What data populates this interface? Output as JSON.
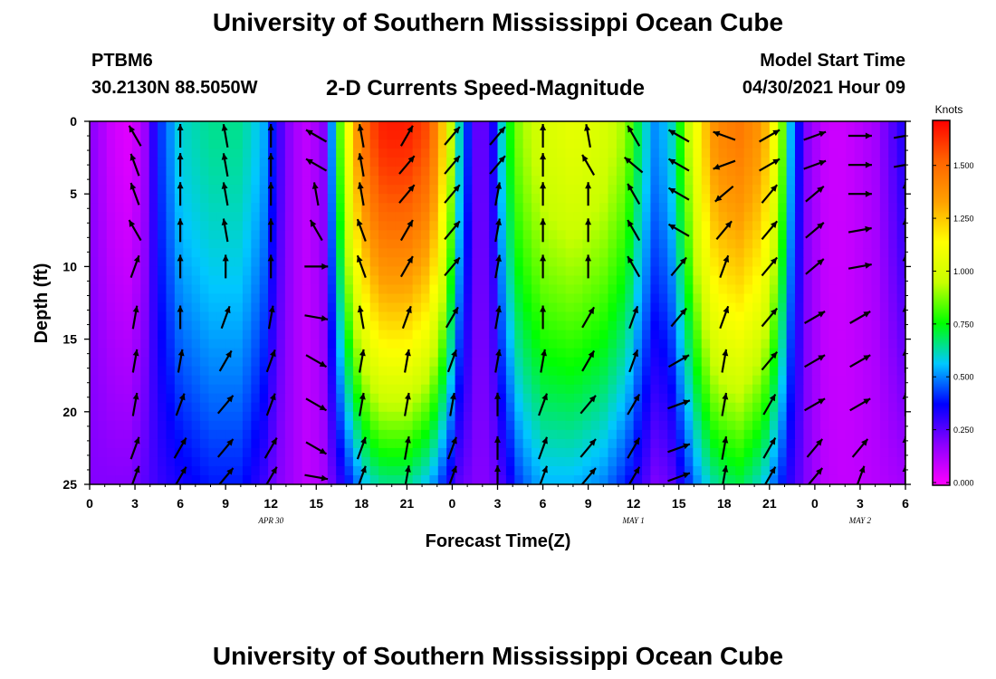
{
  "header": {
    "title": "University of Southern Mississippi Ocean Cube",
    "station": "PTBM6",
    "coords": "30.2130N  88.5050W",
    "subtitle": "2-D Currents Speed-Magnitude",
    "model_label": "Model Start Time",
    "model_time": "04/30/2021 Hour 09"
  },
  "footer": {
    "title": "University of Southern Mississippi Ocean Cube"
  },
  "chart_data": {
    "type": "heatmap",
    "title": "2-D Currents Speed-Magnitude",
    "xlabel": "Forecast Time(Z)",
    "ylabel": "Depth (ft)",
    "x_range_hours": [
      0,
      54
    ],
    "y_range_ft": [
      0,
      25
    ],
    "x_tick_labels": [
      "0",
      "3",
      "6",
      "9",
      "12",
      "15",
      "18",
      "21",
      "0",
      "3",
      "6",
      "9",
      "12",
      "15",
      "18",
      "21",
      "0",
      "3",
      "6"
    ],
    "y_tick_labels": [
      "0",
      "5",
      "10",
      "15",
      "20",
      "25"
    ],
    "date_labels": [
      {
        "hour": 12,
        "label": "APR 30"
      },
      {
        "hour": 36,
        "label": "MAY 1"
      },
      {
        "hour": 51,
        "label": "MAY 2"
      }
    ],
    "colorbar": {
      "label": "Knots",
      "tick_values": [
        0.0,
        0.25,
        0.5,
        0.75,
        1.0,
        1.25,
        1.5
      ],
      "tick_labels": [
        "0.000",
        "0.250",
        "0.500",
        "0.750",
        "1.000",
        "1.250",
        "1.500"
      ],
      "range": [
        0,
        1.7
      ],
      "colors": [
        "#ff00ff",
        "#8c00ff",
        "#0000ff",
        "#00c8ff",
        "#00ff00",
        "#c8ff00",
        "#ffff00",
        "#ffa000",
        "#ff6400",
        "#ff0000"
      ]
    },
    "speed_profile": {
      "hours": [
        0,
        1.5,
        2.5,
        3.5,
        4.5,
        6,
        8,
        10,
        11.5,
        12.5,
        13.5,
        14.5,
        15.5,
        16.5,
        17.5,
        18.5,
        19.5,
        21,
        22.5,
        23.5,
        24.5,
        25.5,
        26.5,
        27.5,
        28.5,
        30,
        32,
        34,
        35.5,
        36.5,
        37.5,
        38.5,
        39.5,
        40.5,
        41.5,
        43,
        44.5,
        45.5,
        46.5,
        47.5,
        48.5,
        49.5,
        50.5,
        52,
        54
      ],
      "surface_knots": [
        0.2,
        0.08,
        0.05,
        0.12,
        0.4,
        0.6,
        0.65,
        0.65,
        0.55,
        0.3,
        0.15,
        0.1,
        0.2,
        0.8,
        1.3,
        1.55,
        1.65,
        1.65,
        1.55,
        1.2,
        0.6,
        0.25,
        0.25,
        0.7,
        0.9,
        1.0,
        1.05,
        1.0,
        0.9,
        0.65,
        0.5,
        0.6,
        0.9,
        1.2,
        1.4,
        1.45,
        1.35,
        1.05,
        0.5,
        0.2,
        0.1,
        0.08,
        0.1,
        0.15,
        0.35
      ],
      "bottom_knots": [
        0.2,
        0.2,
        0.2,
        0.25,
        0.3,
        0.35,
        0.4,
        0.4,
        0.3,
        0.2,
        0.15,
        0.1,
        0.15,
        0.3,
        0.45,
        0.6,
        0.65,
        0.65,
        0.55,
        0.4,
        0.25,
        0.2,
        0.2,
        0.3,
        0.45,
        0.55,
        0.55,
        0.5,
        0.4,
        0.3,
        0.2,
        0.25,
        0.4,
        0.55,
        0.65,
        0.7,
        0.6,
        0.45,
        0.3,
        0.2,
        0.12,
        0.1,
        0.1,
        0.12,
        0.15
      ]
    },
    "vectors": {
      "depths_ft": [
        1,
        3,
        5,
        7.5,
        10,
        13.5,
        16.5,
        19.5,
        22.5,
        24.5
      ],
      "hours": [
        3,
        6,
        9,
        12,
        15,
        18,
        21,
        24,
        27,
        30,
        33,
        36,
        39,
        42,
        45,
        48,
        51,
        54
      ],
      "directions_deg": [
        [
          330,
          0,
          350,
          0,
          300,
          350,
          30,
          40,
          40,
          0,
          350,
          330,
          300,
          290,
          60,
          70,
          90,
          80
        ],
        [
          340,
          0,
          350,
          0,
          300,
          350,
          40,
          40,
          40,
          0,
          330,
          310,
          300,
          250,
          60,
          70,
          90,
          80
        ],
        [
          340,
          0,
          350,
          0,
          350,
          350,
          40,
          40,
          10,
          0,
          0,
          330,
          300,
          230,
          40,
          50,
          90,
          0
        ],
        [
          330,
          0,
          350,
          0,
          330,
          340,
          30,
          40,
          10,
          0,
          0,
          330,
          300,
          40,
          40,
          50,
          80,
          0
        ],
        [
          20,
          0,
          0,
          0,
          90,
          340,
          30,
          40,
          10,
          0,
          0,
          330,
          40,
          20,
          40,
          50,
          80,
          0
        ],
        [
          10,
          0,
          20,
          10,
          100,
          350,
          20,
          30,
          10,
          0,
          30,
          20,
          40,
          20,
          40,
          60,
          60,
          0
        ],
        [
          10,
          10,
          30,
          20,
          120,
          10,
          10,
          20,
          10,
          10,
          30,
          20,
          60,
          10,
          40,
          60,
          60,
          0
        ],
        [
          10,
          20,
          40,
          20,
          120,
          10,
          10,
          10,
          0,
          20,
          40,
          30,
          70,
          10,
          30,
          60,
          60,
          0
        ],
        [
          20,
          30,
          40,
          30,
          120,
          20,
          10,
          20,
          0,
          20,
          40,
          30,
          70,
          10,
          30,
          40,
          40,
          0
        ],
        [
          20,
          30,
          40,
          30,
          100,
          20,
          10,
          20,
          0,
          20,
          40,
          30,
          70,
          10,
          30,
          40,
          20,
          0
        ]
      ]
    },
    "colors": {
      "arrow": "#000000",
      "axis": "#000000",
      "background": "#ffffff"
    }
  }
}
